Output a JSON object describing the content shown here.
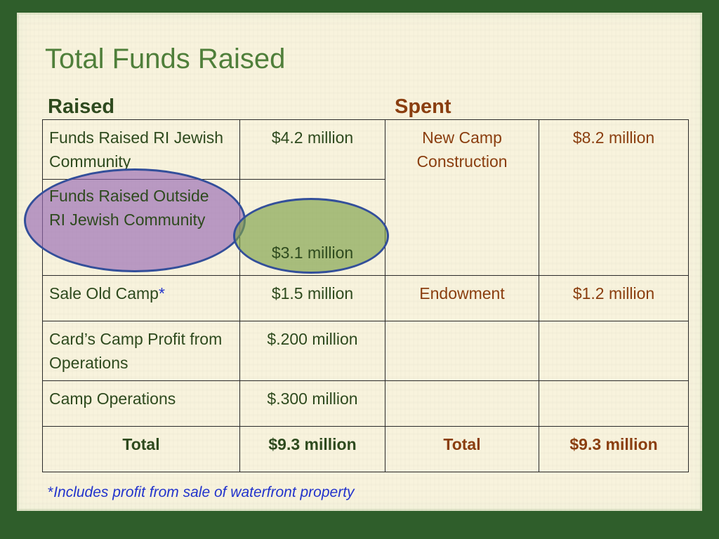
{
  "title": "Total Funds Raised",
  "raised_label": "Raised",
  "spent_label": "Spent",
  "rows": [
    {
      "raised_item": "Funds Raised RI Jewish Community",
      "raised_amount": "$4.2 million"
    },
    {
      "raised_item": "Funds Raised Outside RI Jewish Community",
      "raised_amount": "$3.1 million"
    },
    {
      "raised_item": "Sale Old Camp",
      "raised_marker": "*",
      "raised_amount": "$1.5 million",
      "spent_item": "Endowment",
      "spent_amount": "$1.2 million"
    },
    {
      "raised_item": "Card’s Camp Profit from Operations",
      "raised_amount": "$.200 million"
    },
    {
      "raised_item": "Camp Operations",
      "raised_amount": "$.300 million"
    }
  ],
  "spent_merged": {
    "item": "New Camp Construction",
    "amount": "$8.2 million"
  },
  "totals": {
    "raised_label": "Total",
    "raised_amount": "$9.3 million",
    "spent_label": "Total",
    "spent_amount": "$9.3 million"
  },
  "footnote": {
    "marker": "*",
    "text": "Includes profit from sale of waterfront property"
  },
  "colors": {
    "raised_text": "#2e4a1e",
    "spent_text": "#8a3e0f",
    "title": "#4f7f3a",
    "highlight_purple": "#9669b4",
    "highlight_green": "#7da048"
  }
}
